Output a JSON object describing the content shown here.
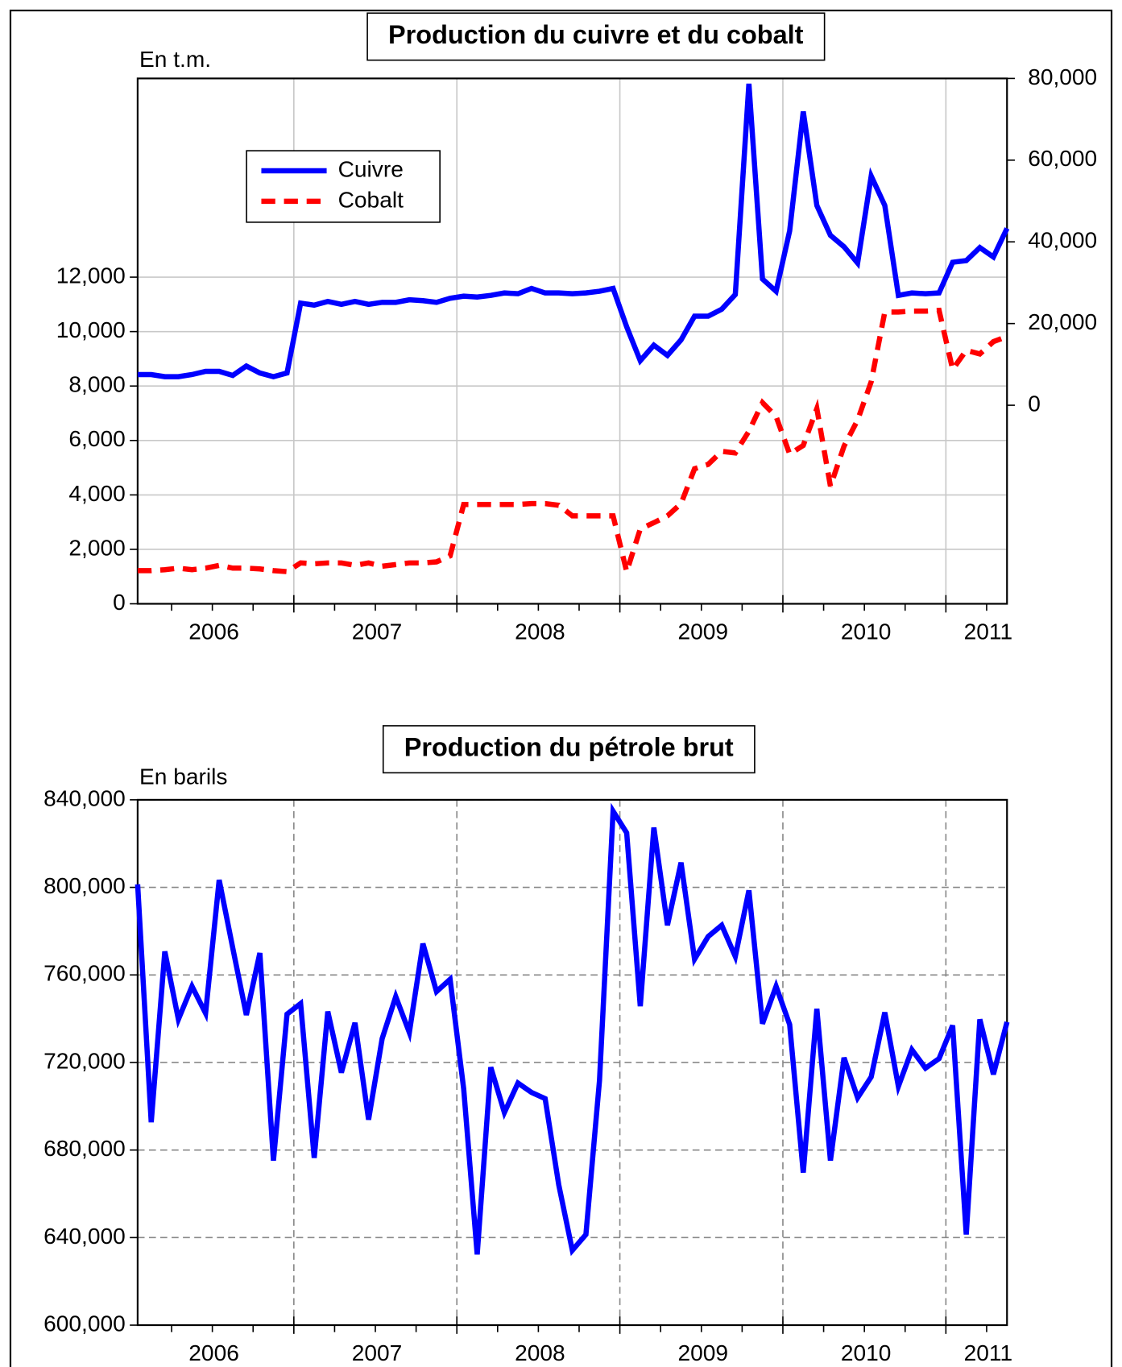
{
  "chart_data": [
    {
      "type": "line",
      "title": "Production du cuivre et du cobalt",
      "ylabel": "En t.m.",
      "categories": [
        null,
        null,
        null,
        null,
        null,
        null,
        "2006",
        null,
        null,
        null,
        null,
        null,
        null,
        null,
        null,
        null,
        null,
        null,
        "2007",
        null,
        null,
        null,
        null,
        null,
        null,
        null,
        null,
        null,
        null,
        null,
        "2008",
        null,
        null,
        null,
        null,
        null,
        null,
        null,
        null,
        null,
        null,
        null,
        "2009",
        null,
        null,
        null,
        null,
        null,
        null,
        null,
        null,
        null,
        null,
        null,
        "2010",
        null,
        null,
        null,
        null,
        null,
        null,
        null,
        null,
        "2011",
        null
      ],
      "series": [
        {
          "name": "Cuivre",
          "color": "#0000ff",
          "dashed": false,
          "axis": "y2",
          "values": [
            7500,
            7500,
            7000,
            7000,
            7500,
            8300,
            8300,
            7300,
            9600,
            7900,
            7000,
            7900,
            25000,
            24500,
            25400,
            24700,
            25400,
            24700,
            25200,
            25200,
            25800,
            25600,
            25200,
            26200,
            26700,
            26500,
            26900,
            27500,
            27300,
            28600,
            27500,
            27500,
            27300,
            27500,
            27900,
            28600,
            19200,
            10900,
            14700,
            12200,
            16000,
            21800,
            21800,
            23500,
            27100,
            78700,
            30900,
            27900,
            42700,
            71900,
            48900,
            41600,
            38800,
            34800,
            56100,
            48900,
            26900,
            27500,
            27300,
            27500,
            35000,
            35400,
            38600,
            36300,
            43300
          ]
        },
        {
          "name": "Cobalt",
          "color": "#ff0000",
          "dashed": true,
          "values": [
            1220,
            1220,
            1250,
            1310,
            1250,
            1310,
            1410,
            1310,
            1310,
            1280,
            1220,
            1180,
            1500,
            1470,
            1500,
            1500,
            1410,
            1500,
            1380,
            1440,
            1500,
            1500,
            1540,
            1760,
            3650,
            3650,
            3650,
            3650,
            3650,
            3680,
            3680,
            3620,
            3230,
            3230,
            3230,
            3230,
            1180,
            2750,
            2980,
            3230,
            3680,
            4960,
            5120,
            5600,
            5540,
            6340,
            7390,
            6880,
            5500,
            5820,
            7170,
            4320,
            5790,
            6750,
            8160,
            10720,
            10720,
            10750,
            10750,
            10780,
            8610,
            9310,
            9180,
            9630,
            9820
          ]
        }
      ],
      "ylim": [
        0,
        19300
      ],
      "yticks": [
        0,
        {
          "value": 2000,
          "label": "2,000"
        },
        {
          "value": 4000,
          "label": "4,000"
        },
        {
          "value": 6000,
          "label": "6,000"
        },
        {
          "value": 8000,
          "label": "8,000"
        },
        {
          "value": 10000,
          "label": "10,000"
        },
        {
          "value": 12000,
          "label": "12,000"
        }
      ],
      "y2lim": [
        -48600,
        80000
      ],
      "y2ticks": [
        0,
        {
          "value": 20000,
          "label": "20,000"
        },
        {
          "value": 40000,
          "label": "40,000"
        },
        {
          "value": 60000,
          "label": "60,000"
        },
        {
          "value": 80000,
          "label": "80,000"
        }
      ],
      "grid": "solid",
      "legend": "upper left"
    },
    {
      "type": "line",
      "title": "Production du pétrole brut",
      "ylabel": "En barils",
      "categories": [
        null,
        null,
        null,
        null,
        null,
        null,
        "2006",
        null,
        null,
        null,
        null,
        null,
        null,
        null,
        null,
        null,
        null,
        null,
        "2007",
        null,
        null,
        null,
        null,
        null,
        null,
        null,
        null,
        null,
        null,
        null,
        "2008",
        null,
        null,
        null,
        null,
        null,
        null,
        null,
        null,
        null,
        null,
        null,
        "2009",
        null,
        null,
        null,
        null,
        null,
        null,
        null,
        null,
        null,
        null,
        null,
        "2010",
        null,
        null,
        null,
        null,
        null,
        null,
        null,
        null,
        "2011",
        null
      ],
      "series": [
        {
          "color": "#0000ff",
          "dashed": false,
          "values": [
            801400,
            692700,
            770700,
            739700,
            754800,
            742500,
            803400,
            772300,
            741700,
            770000,
            675200,
            742100,
            746900,
            676400,
            743300,
            715400,
            738100,
            693900,
            730900,
            750100,
            733700,
            774300,
            752400,
            758000,
            707900,
            632300,
            717800,
            697100,
            710600,
            706300,
            703500,
            664100,
            634200,
            641400,
            711800,
            834800,
            824900,
            745700,
            827300,
            782700,
            811300,
            767200,
            777500,
            782700,
            768400,
            798600,
            737700,
            754800,
            737300,
            669700,
            744500,
            675200,
            722200,
            703900,
            713400,
            742900,
            709100,
            725800,
            717400,
            721800,
            736900,
            641400,
            739700,
            714600,
            738500
          ]
        }
      ],
      "ylim": [
        600000,
        840000
      ],
      "yticks": [
        {
          "value": 600000,
          "label": "600,000"
        },
        {
          "value": 640000,
          "label": "640,000"
        },
        {
          "value": 680000,
          "label": "680,000"
        },
        {
          "value": 720000,
          "label": "720,000"
        },
        {
          "value": 760000,
          "label": "760,000"
        },
        {
          "value": 800000,
          "label": "800,000"
        },
        {
          "value": 840000,
          "label": "840,000"
        }
      ],
      "grid": "dashed"
    }
  ]
}
